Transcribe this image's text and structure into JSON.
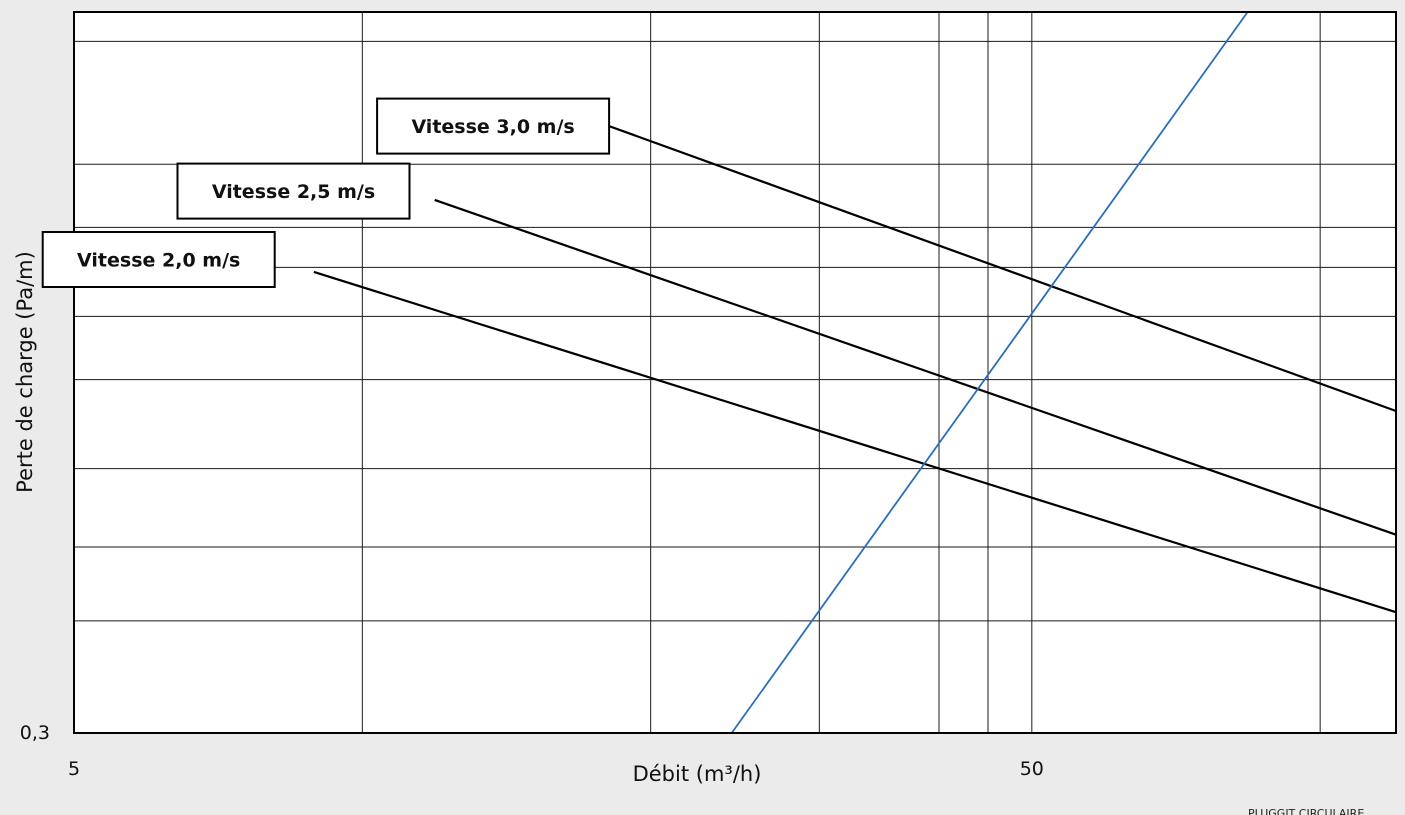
{
  "chart_data": {
    "type": "line",
    "xlabel": "Débit (m³/h)",
    "ylabel": "Perte  de charge (Pa/m)",
    "x_scale": "log",
    "y_scale": "log",
    "xlim": [
      5,
      120
    ],
    "ylim": [
      0.3,
      8
    ],
    "x_tick_labels": [
      {
        "value": 5,
        "label": "5"
      },
      {
        "value": 50,
        "label": "50"
      }
    ],
    "y_tick_labels": [
      {
        "value": 0.3,
        "label": "0,3"
      }
    ],
    "x_gridlines": [
      10,
      20,
      30,
      40,
      45,
      50,
      100
    ],
    "y_gridlines": [
      0.5,
      0.7,
      1,
      1.5,
      2,
      2.5,
      3,
      4,
      7
    ],
    "grid": true,
    "series": [
      {
        "name": "Vitesse 3,0 m/s",
        "label_anchor_x": 18.1,
        "x": [
          15.9,
          120
        ],
        "y": [
          5.2,
          1.3
        ],
        "color": "#000000"
      },
      {
        "name": "Vitesse 2,5 m/s",
        "label_anchor_x": 11.2,
        "x": [
          11.9,
          120
        ],
        "y": [
          3.4,
          0.74
        ],
        "color": "#000000"
      },
      {
        "name": "Vitesse 2,0 m/s",
        "label_anchor_x": 8.1,
        "x": [
          8.9,
          120
        ],
        "y": [
          2.45,
          0.52
        ],
        "color": "#000000"
      },
      {
        "name": "",
        "x": [
          24.3,
          84
        ],
        "y": [
          0.3,
          8
        ],
        "color": "#2a6ebb"
      }
    ]
  },
  "footer": {
    "watermark": "PLUGGIT CIRCULAIRE"
  }
}
